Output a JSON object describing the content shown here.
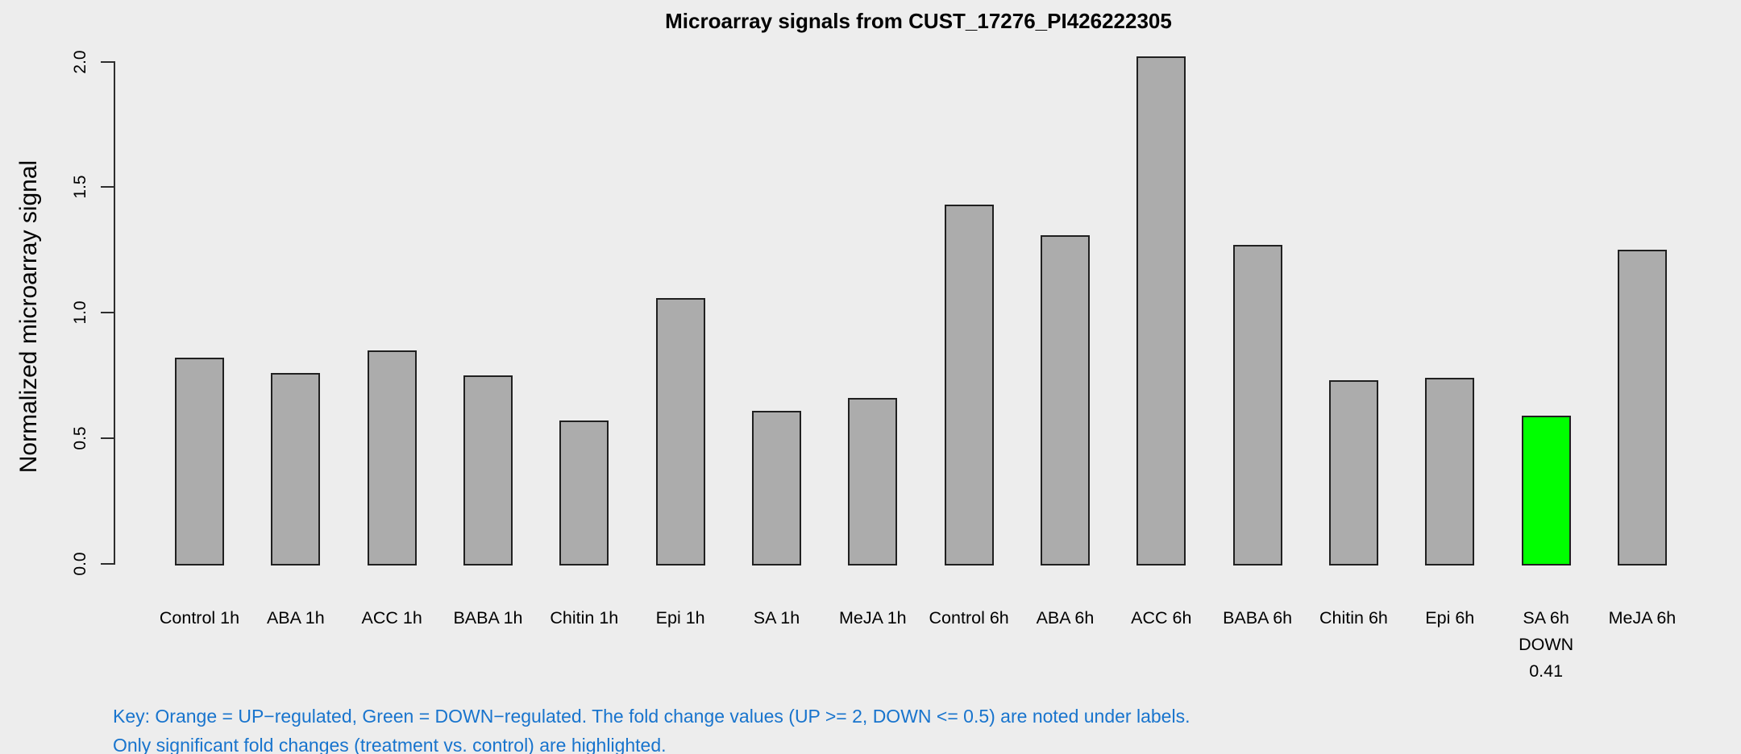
{
  "chart_data": {
    "type": "bar",
    "title": "Microarray signals from CUST_17276_PI426222305",
    "ylabel": "Normalized microarray signal",
    "xlabel": "",
    "ylim": [
      0.0,
      2.0
    ],
    "yticks": [
      0.0,
      0.5,
      1.0,
      1.5,
      2.0
    ],
    "ytick_labels": [
      "0.0",
      "0.5",
      "1.0",
      "1.5",
      "2.0"
    ],
    "grid": false,
    "legend": "none",
    "categories": [
      "Control 1h",
      "ABA 1h",
      "ACC 1h",
      "BABA 1h",
      "Chitin 1h",
      "Epi 1h",
      "SA 1h",
      "MeJA 1h",
      "Control 6h",
      "ABA 6h",
      "ACC 6h",
      "BABA 6h",
      "Chitin 6h",
      "Epi 6h",
      "SA 6h",
      "MeJA 6h"
    ],
    "values": [
      0.82,
      0.76,
      0.85,
      0.75,
      0.57,
      1.06,
      0.61,
      0.66,
      1.43,
      1.31,
      2.02,
      1.27,
      0.73,
      0.74,
      0.59,
      1.25
    ],
    "bar_colors": [
      "#ACACAC",
      "#ACACAC",
      "#ACACAC",
      "#ACACAC",
      "#ACACAC",
      "#ACACAC",
      "#ACACAC",
      "#ACACAC",
      "#ACACAC",
      "#ACACAC",
      "#ACACAC",
      "#ACACAC",
      "#ACACAC",
      "#ACACAC",
      "#00FF00",
      "#ACACAC"
    ],
    "annotations": [
      {
        "category": "SA 6h",
        "lines": [
          "DOWN",
          "0.41"
        ],
        "meaning": "down-regulated, fold change 0.41"
      }
    ],
    "note_lines": [
      "Key: Orange = UP−regulated, Green = DOWN−regulated. The fold change values (UP >= 2, DOWN <= 0.5) are noted under labels.",
      "Only significant fold changes (treatment vs. control) are highlighted."
    ]
  },
  "colors": {
    "background": "#EDEDED",
    "bar_default": "#ACACAC",
    "bar_down_regulated": "#00FF00",
    "bar_border": "#202020",
    "axis": "#2E2E2E",
    "text": "#000000",
    "key_text": "#1874CD"
  }
}
